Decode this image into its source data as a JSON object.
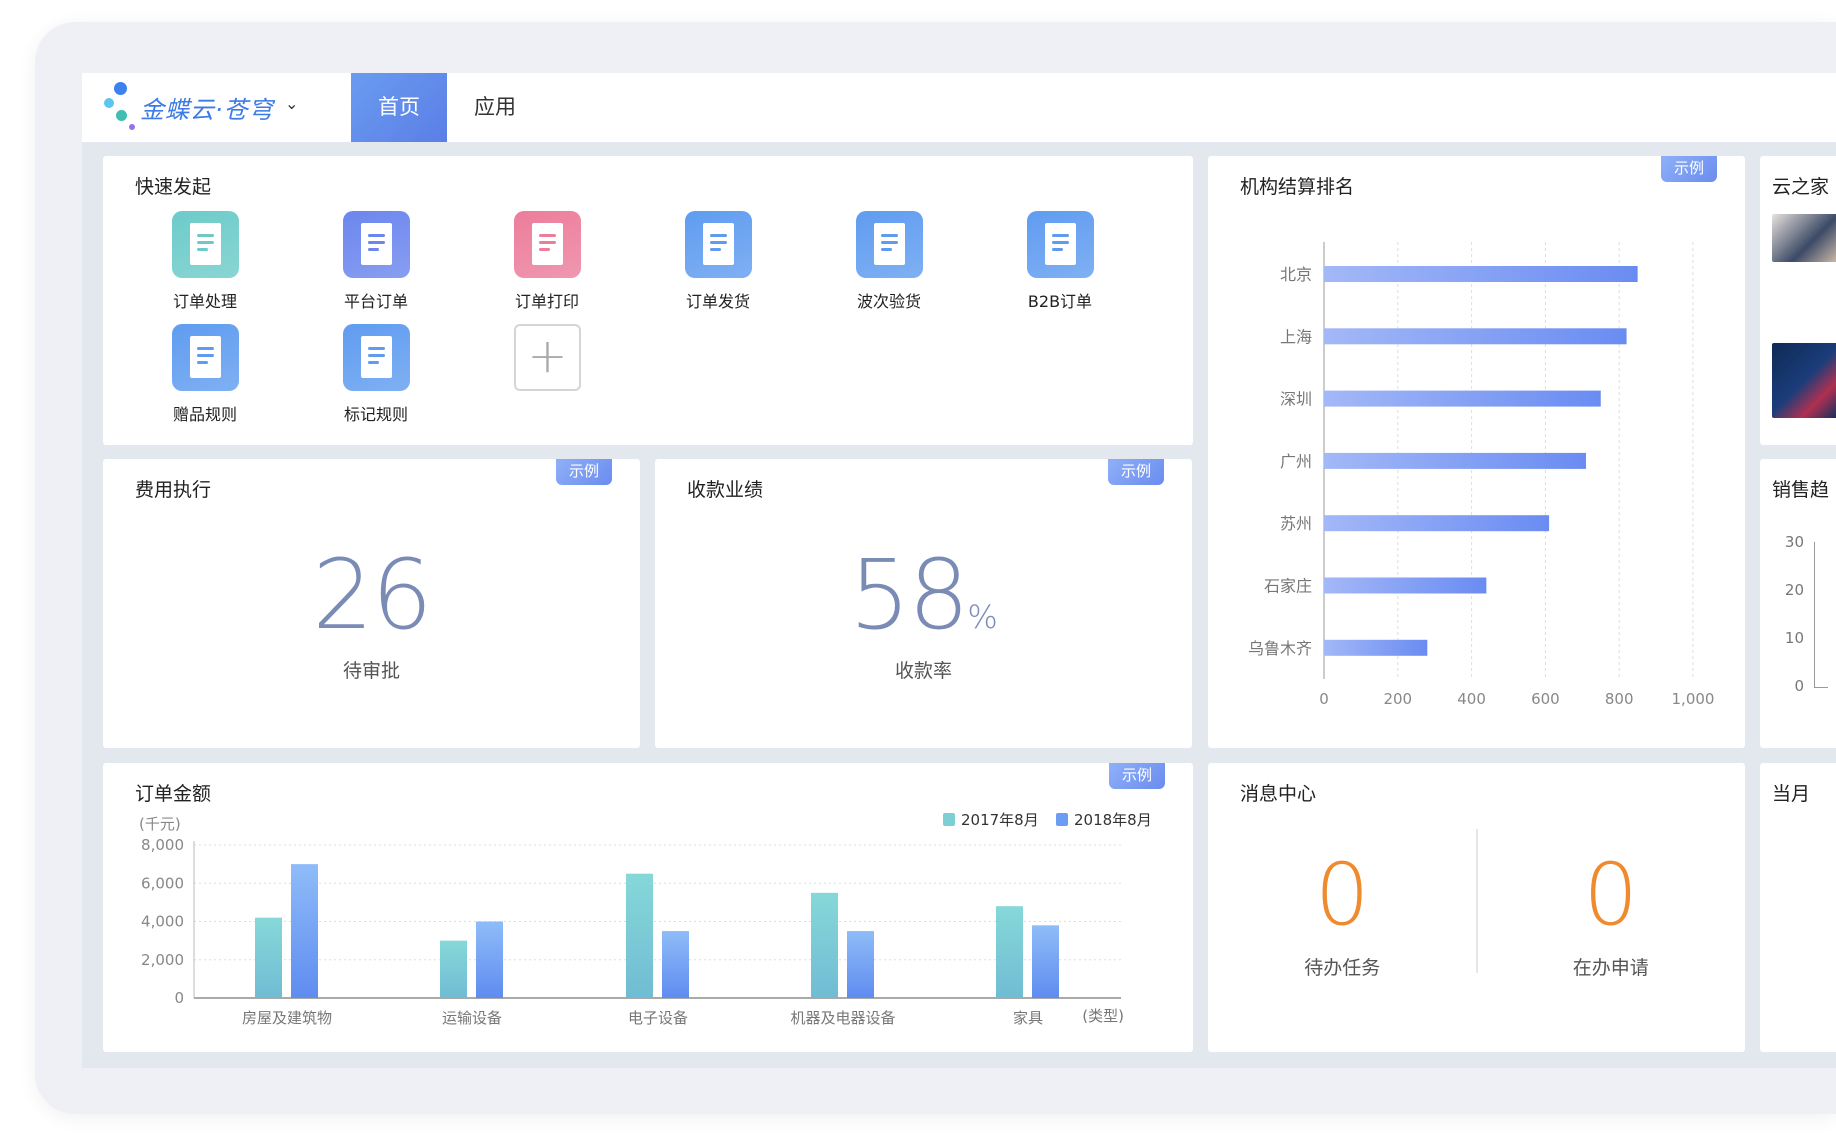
{
  "header": {
    "brand": "金蝶云·苍穹",
    "tabs": [
      {
        "label": "首页",
        "active": true
      },
      {
        "label": "应用",
        "active": false
      }
    ]
  },
  "badge_label": "示例",
  "quick_launch": {
    "title": "快速发起",
    "items": [
      {
        "label": "订单处理",
        "color": "#6ccbc9"
      },
      {
        "label": "平台订单",
        "color": "#6b86ee"
      },
      {
        "label": "订单打印",
        "color": "#ec7d9b"
      },
      {
        "label": "订单发货",
        "color": "#5f9cf0"
      },
      {
        "label": "波次验货",
        "color": "#5f9cf0"
      },
      {
        "label": "B2B订单",
        "color": "#5f9cf0"
      },
      {
        "label": "赠品规则",
        "color": "#5f9cf0"
      },
      {
        "label": "标记规则",
        "color": "#5f9cf0"
      }
    ],
    "add_icon": "plus-icon"
  },
  "expense": {
    "title": "费用执行",
    "value": "26",
    "label": "待审批"
  },
  "collection": {
    "title": "收款业绩",
    "value": "58",
    "unit": "%",
    "label": "收款率"
  },
  "ranking": {
    "title": "机构结算排名"
  },
  "messages": {
    "title": "消息中心",
    "items": [
      {
        "value": "0",
        "label": "待办任务"
      },
      {
        "value": "0",
        "label": "在办申请"
      }
    ]
  },
  "right_column": {
    "cards": [
      {
        "title": "云之家"
      },
      {
        "title": "销售趋",
        "ticks": [
          "30",
          "20",
          "10",
          "0"
        ]
      },
      {
        "title": "当月"
      }
    ]
  },
  "order_title": "订单金额",
  "chart_data": [
    {
      "type": "bar",
      "orientation": "horizontal",
      "title": "机构结算排名",
      "categories": [
        "北京",
        "上海",
        "深圳",
        "广州",
        "苏州",
        "石家庄",
        "乌鲁木齐"
      ],
      "values": [
        850,
        820,
        750,
        710,
        610,
        440,
        280
      ],
      "xlim": [
        0,
        1000
      ],
      "xticks": [
        "0",
        "200",
        "400",
        "600",
        "800",
        "1,000"
      ],
      "grid": true,
      "color": "#6a8cf2"
    },
    {
      "type": "bar",
      "title": "订单金额",
      "ylabel": "(千元)",
      "xlabel": "(类型)",
      "categories": [
        "房屋及建筑物",
        "运输设备",
        "电子设备",
        "机器及电器设备",
        "家具"
      ],
      "series": [
        {
          "name": "2017年8月",
          "values": [
            4200,
            3000,
            6500,
            5500,
            4800
          ],
          "color": "#7ecfd3"
        },
        {
          "name": "2018年8月",
          "values": [
            7000,
            4000,
            3500,
            3500,
            3800
          ],
          "color": "#6d9cf5"
        }
      ],
      "ylim": [
        0,
        8000
      ],
      "yticks": [
        "0",
        "2,000",
        "4,000",
        "6,000",
        "8,000"
      ],
      "grid": true,
      "legend": "top-right"
    }
  ]
}
